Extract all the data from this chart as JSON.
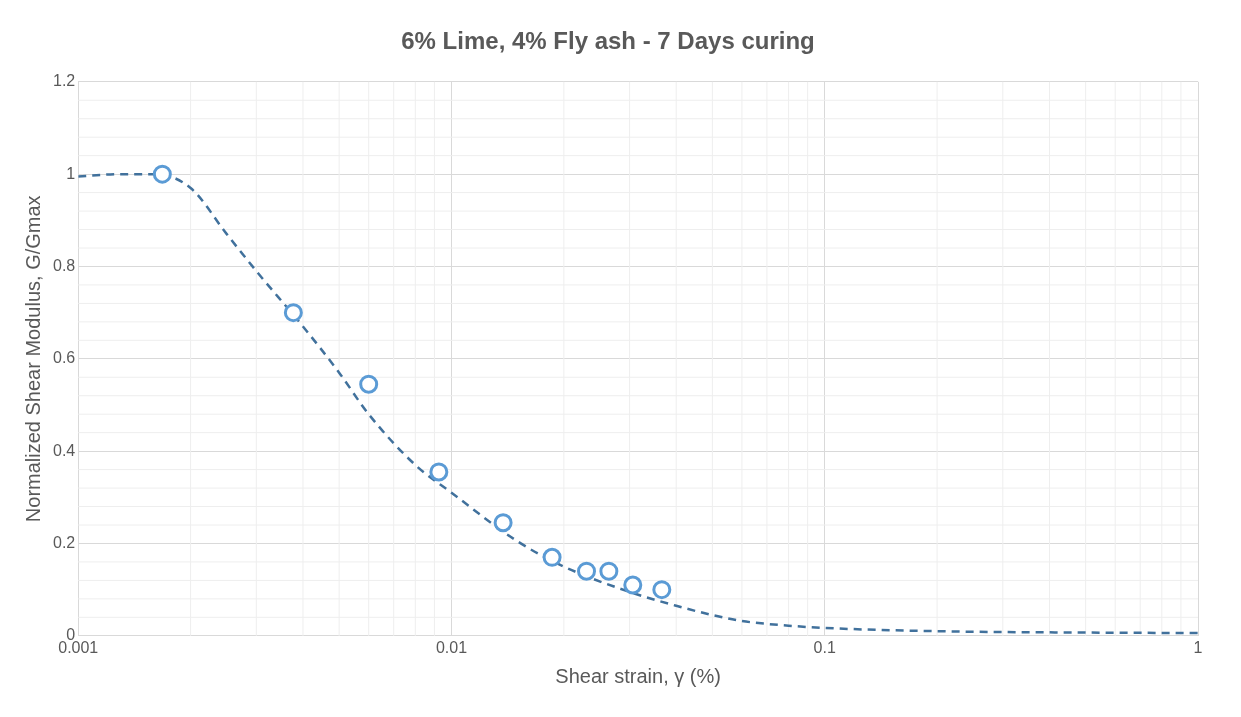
{
  "chart_data": {
    "type": "scatter",
    "title": "6% Lime, 4% Fly ash - 7 Days curing",
    "xlabel": "Shear strain, γ (%)",
    "ylabel": "Normalized Shear Modulus, G/Gmax",
    "log": "x",
    "xlim": [
      0.001,
      1
    ],
    "xticks": [
      0.001,
      0.01,
      0.1,
      1
    ],
    "ylim": [
      0,
      1.2
    ],
    "yticks": [
      0,
      0.2,
      0.4,
      0.6,
      0.8,
      1,
      1.2
    ],
    "grid": true,
    "legend": false,
    "series": [
      {
        "marker": "circle",
        "color": "#5b9bd5",
        "x": [
          0.00168,
          0.00377,
          0.006,
          0.00925,
          0.01375,
          0.0186,
          0.023,
          0.0264,
          0.0306,
          0.0366
        ],
        "values": [
          1.0,
          0.7,
          0.545,
          0.355,
          0.245,
          0.17,
          0.14,
          0.14,
          0.11,
          0.1
        ]
      },
      {
        "type": "line",
        "marker": "none",
        "color": "#41719c",
        "line_style": "dashed",
        "x": [
          0.001,
          0.0013,
          0.0016,
          0.002,
          0.0025,
          0.003,
          0.004,
          0.005,
          0.006,
          0.008,
          0.01,
          0.015,
          0.02,
          0.03,
          0.04,
          0.05,
          0.06,
          0.08,
          0.1,
          0.2,
          0.5,
          1
        ],
        "values": [
          0.995,
          1.0,
          1.0,
          0.97,
          0.87,
          0.79,
          0.67,
          0.57,
          0.48,
          0.37,
          0.31,
          0.205,
          0.15,
          0.095,
          0.065,
          0.045,
          0.032,
          0.022,
          0.017,
          0.01,
          0.007,
          0.006
        ]
      }
    ]
  }
}
